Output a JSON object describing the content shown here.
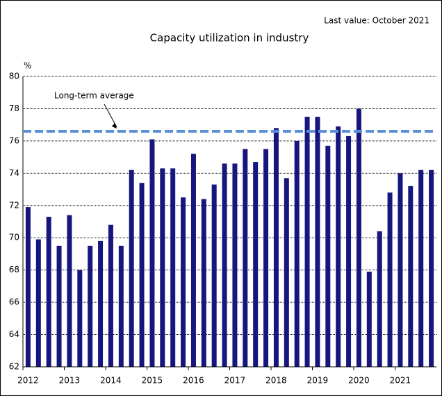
{
  "chart_data": {
    "type": "bar",
    "title": "Capacity utilization in industry",
    "subtitle": "Last value: October 2021",
    "y_label": "%",
    "categories": [
      "2012",
      null,
      null,
      null,
      "2013",
      null,
      null,
      null,
      "2014",
      null,
      null,
      null,
      "2015",
      null,
      null,
      null,
      "2016",
      null,
      null,
      null,
      "2017",
      null,
      null,
      null,
      "2018",
      null,
      null,
      null,
      "2019",
      null,
      null,
      null,
      "2020",
      null,
      null,
      null,
      "2021",
      null,
      null,
      null
    ],
    "values": [
      71.9,
      69.9,
      71.3,
      69.5,
      71.4,
      68.0,
      69.5,
      69.8,
      70.8,
      69.5,
      74.2,
      73.4,
      76.1,
      74.3,
      74.3,
      72.5,
      75.2,
      72.4,
      73.3,
      74.6,
      74.6,
      75.5,
      74.7,
      75.5,
      76.8,
      73.7,
      76.0,
      77.5,
      77.5,
      75.7,
      76.9,
      76.3,
      78.0,
      67.9,
      70.4,
      72.8,
      74.0,
      73.2,
      74.2,
      74.2
    ],
    "color": "#16167e",
    "ylim": [
      62,
      80
    ],
    "yticks": [
      62,
      64,
      66,
      68,
      70,
      72,
      74,
      76,
      78,
      80
    ],
    "grid": true,
    "reference_line": {
      "label": "Long-term average",
      "value": 76.6,
      "color": "#5b8fd6"
    }
  }
}
